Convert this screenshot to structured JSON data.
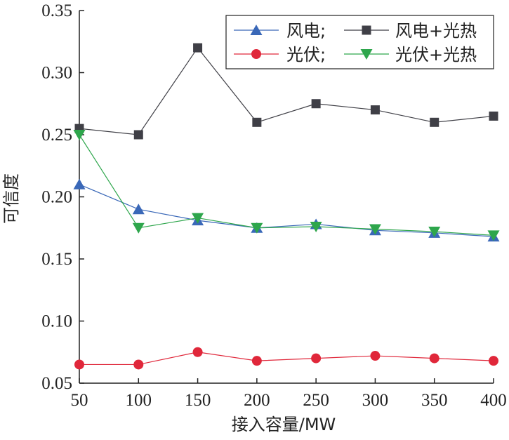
{
  "chart_data": {
    "type": "line",
    "x": [
      50,
      100,
      150,
      200,
      250,
      300,
      350,
      400
    ],
    "xlabel": "接入容量/MW",
    "ylabel": "可信度",
    "xlim": [
      50,
      400
    ],
    "ylim": [
      0.05,
      0.35
    ],
    "xticks": [
      "50",
      "100",
      "150",
      "200",
      "250",
      "300",
      "350",
      "400"
    ],
    "yticks": [
      "0.05",
      "0.10",
      "0.15",
      "0.20",
      "0.25",
      "0.30",
      "0.35"
    ],
    "grid": false,
    "legend_position": "top-right",
    "series": [
      {
        "name": "风电;",
        "marker": "triangle-up",
        "color": "#3a68b8",
        "values": [
          0.21,
          0.19,
          0.181,
          0.175,
          0.178,
          0.173,
          0.171,
          0.168
        ]
      },
      {
        "name": "风电+光热",
        "marker": "square",
        "color": "#3f3f46",
        "values": [
          0.255,
          0.25,
          0.32,
          0.26,
          0.275,
          0.27,
          0.26,
          0.265
        ]
      },
      {
        "name": "光伏;",
        "marker": "circle",
        "color": "#e0273a",
        "values": [
          0.065,
          0.065,
          0.075,
          0.068,
          0.07,
          0.072,
          0.07,
          0.068
        ]
      },
      {
        "name": "光伏+光热",
        "marker": "triangle-down",
        "color": "#2ea64c",
        "values": [
          0.25,
          0.175,
          0.183,
          0.175,
          0.176,
          0.174,
          0.172,
          0.169
        ]
      }
    ]
  }
}
